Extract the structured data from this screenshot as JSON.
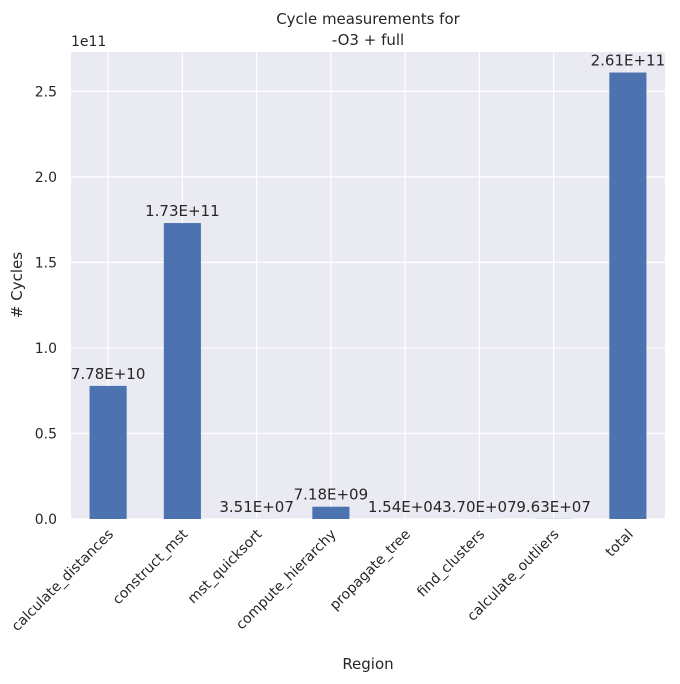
{
  "chart_data": {
    "type": "bar",
    "title": "Cycle measurements for\n-O3 + full",
    "title_lines": [
      "Cycle measurements for",
      "-O3 + full"
    ],
    "xlabel": "Region",
    "ylabel": "# Cycles",
    "y_offset_label": "1e11",
    "y_scale": 100000000000,
    "ylim": [
      0,
      273000000000
    ],
    "yticks": [
      0,
      50000000000,
      100000000000,
      150000000000,
      200000000000,
      250000000000
    ],
    "ytick_labels": [
      "0.0",
      "0.5",
      "1.0",
      "1.5",
      "2.0",
      "2.5"
    ],
    "categories": [
      "calculate_distances",
      "construct_mst",
      "mst_quicksort",
      "compute_hierarchy",
      "propagate_tree",
      "find_clusters",
      "calculate_outliers",
      "total"
    ],
    "values": [
      77800000000,
      173000000000,
      35100000,
      7180000000,
      15400,
      37000000,
      96300000,
      261000000000
    ],
    "data_labels": [
      "7.78E+10",
      "1.73E+11",
      "3.51E+07",
      "7.18E+09",
      "1.54E+04",
      "3.70E+07",
      "9.63E+07",
      "2.61E+11"
    ],
    "grid": true,
    "colors": {
      "bar": "#4c72b0",
      "background": "#eaeaf2",
      "grid": "#ffffff",
      "text": "#262626"
    }
  }
}
